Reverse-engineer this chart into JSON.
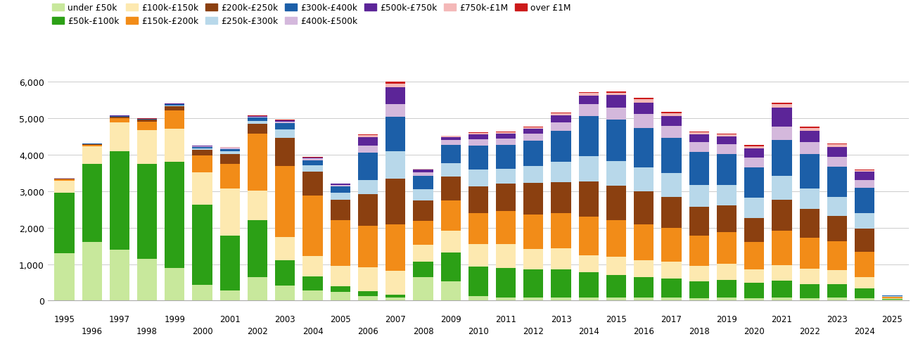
{
  "years": [
    1995,
    1996,
    1997,
    1998,
    1999,
    2000,
    2001,
    2002,
    2003,
    2004,
    2005,
    2006,
    2007,
    2008,
    2009,
    2010,
    2011,
    2012,
    2013,
    2014,
    2015,
    2016,
    2017,
    2018,
    2019,
    2020,
    2021,
    2022,
    2023,
    2024,
    2025
  ],
  "categories": [
    "under £50k",
    "£50k-£100k",
    "£100k-£150k",
    "£150k-£200k",
    "£200k-£250k",
    "£250k-£300k",
    "£300k-£400k",
    "£400k-£500k",
    "£500k-£750k",
    "£750k-£1M",
    "over £1M"
  ],
  "colors": [
    "#c8e89c",
    "#2ca016",
    "#fde9b0",
    "#f28c18",
    "#8b4010",
    "#b8d8ea",
    "#1c5fa8",
    "#d4b8dc",
    "#5c2598",
    "#f4b8b8",
    "#cc1a1a"
  ],
  "data": {
    "under £50k": [
      1300,
      1600,
      1400,
      1150,
      900,
      440,
      280,
      650,
      420,
      270,
      230,
      130,
      80,
      650,
      530,
      130,
      90,
      90,
      90,
      90,
      90,
      80,
      80,
      70,
      80,
      70,
      80,
      70,
      80,
      60,
      20
    ],
    "£50k-£100k": [
      1650,
      2150,
      2700,
      2600,
      2900,
      2200,
      1500,
      1550,
      680,
      400,
      170,
      120,
      90,
      420,
      780,
      800,
      810,
      760,
      770,
      680,
      620,
      570,
      520,
      460,
      480,
      420,
      470,
      380,
      380,
      270,
      25
    ],
    "£100k-£150k": [
      330,
      480,
      780,
      920,
      920,
      870,
      1300,
      820,
      650,
      560,
      560,
      660,
      640,
      460,
      600,
      620,
      660,
      570,
      570,
      480,
      490,
      460,
      460,
      420,
      460,
      370,
      420,
      420,
      380,
      320,
      25
    ],
    "£150k-£200k": [
      40,
      45,
      120,
      240,
      490,
      480,
      670,
      1550,
      1950,
      1650,
      1250,
      1150,
      1280,
      650,
      840,
      850,
      890,
      950,
      960,
      1050,
      1000,
      990,
      940,
      840,
      850,
      740,
      950,
      850,
      790,
      680,
      25
    ],
    "£200k-£250k": [
      15,
      15,
      35,
      45,
      120,
      140,
      270,
      270,
      760,
      660,
      560,
      860,
      1250,
      560,
      650,
      740,
      750,
      850,
      860,
      960,
      960,
      900,
      840,
      790,
      750,
      660,
      850,
      800,
      700,
      640,
      15
    ],
    "£250k-£300k": [
      8,
      8,
      12,
      12,
      25,
      45,
      70,
      90,
      230,
      180,
      180,
      380,
      760,
      320,
      360,
      460,
      420,
      470,
      560,
      700,
      660,
      650,
      650,
      600,
      560,
      560,
      660,
      560,
      510,
      420,
      12
    ],
    "£300k-£400k": [
      8,
      8,
      12,
      12,
      25,
      45,
      70,
      90,
      180,
      130,
      180,
      760,
      950,
      370,
      510,
      650,
      650,
      700,
      850,
      1100,
      1150,
      1090,
      980,
      890,
      840,
      840,
      980,
      940,
      840,
      700,
      15
    ],
    "£400k-£500k": [
      4,
      4,
      8,
      8,
      12,
      18,
      25,
      25,
      45,
      45,
      45,
      190,
      330,
      90,
      130,
      180,
      180,
      185,
      230,
      330,
      330,
      370,
      320,
      270,
      270,
      270,
      370,
      320,
      270,
      220,
      4
    ],
    "£500k-£750k": [
      4,
      4,
      4,
      4,
      8,
      8,
      16,
      16,
      25,
      25,
      25,
      240,
      480,
      70,
      90,
      130,
      130,
      140,
      185,
      230,
      330,
      320,
      270,
      220,
      220,
      250,
      510,
      320,
      270,
      220,
      4
    ],
    "£750k-£1M": [
      2,
      2,
      2,
      2,
      4,
      4,
      6,
      6,
      8,
      8,
      8,
      45,
      90,
      16,
      25,
      35,
      45,
      45,
      55,
      70,
      70,
      90,
      70,
      50,
      50,
      60,
      90,
      70,
      60,
      50,
      2
    ],
    "over £1M": [
      2,
      2,
      2,
      2,
      4,
      4,
      6,
      6,
      8,
      8,
      8,
      25,
      55,
      10,
      12,
      16,
      18,
      18,
      25,
      35,
      35,
      50,
      40,
      35,
      25,
      25,
      55,
      35,
      25,
      18,
      2
    ]
  },
  "ylim": [
    0,
    6000
  ],
  "yticks": [
    0,
    1000,
    2000,
    3000,
    4000,
    5000,
    6000
  ],
  "background_color": "#ffffff",
  "grid_color": "#cccccc"
}
